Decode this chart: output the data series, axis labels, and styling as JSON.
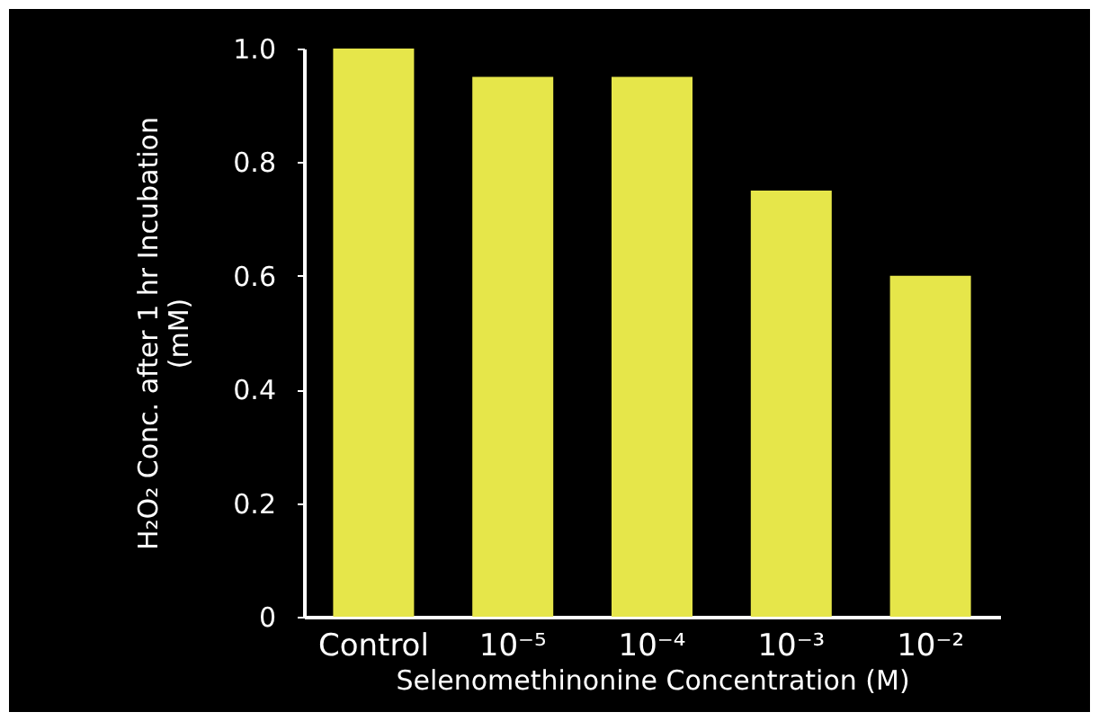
{
  "chart_data": {
    "type": "bar",
    "xlabel": "Selenomethinonine Concentration (M)",
    "ylabel": [
      "H₂O₂ Conc. after 1 hr Incubation",
      "(mM)"
    ],
    "categories": [
      "Control",
      "10⁻⁵",
      "10⁻⁴",
      "10⁻³",
      "10⁻²"
    ],
    "values": [
      1.0,
      0.95,
      0.95,
      0.75,
      0.6
    ],
    "color": "#e6e64a",
    "ylim": [
      0,
      1
    ],
    "yticks": [
      0,
      0.2,
      0.4,
      0.6,
      0.8,
      {
        "value": 1,
        "label": "1.0"
      }
    ],
    "grid": false
  }
}
